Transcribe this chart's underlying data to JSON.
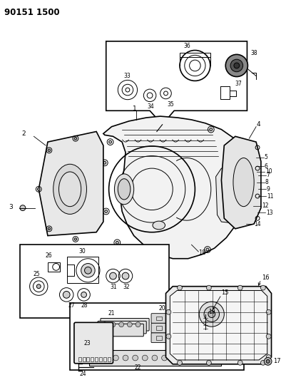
{
  "title": "90151 1500",
  "bg_color": "#ffffff",
  "fg_color": "#000000",
  "figsize": [
    3.94,
    5.33
  ],
  "dpi": 100,
  "lw_main": 1.2,
  "lw_thin": 0.7,
  "lw_label": 0.6,
  "label_fs": 6.0,
  "title_fs": 8.5
}
